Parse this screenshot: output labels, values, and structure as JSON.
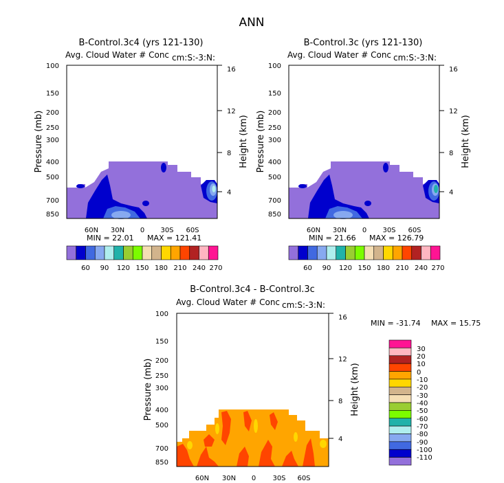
{
  "page_title": "ANN",
  "chart_data": [
    {
      "type": "contour",
      "title": "B-Control.3c4 (yrs 121-130)",
      "subtitle": "Avg. Cloud Water # Conc",
      "units": "cm:S:-3:N:",
      "ylabel": "Pressure (mb)",
      "y2label": "Height (km)",
      "y_ticks": [
        "100",
        "150",
        "200",
        "250",
        "300",
        "400",
        "500",
        "700",
        "850"
      ],
      "y2_ticks": [
        "16",
        "12",
        "8",
        "4"
      ],
      "x_ticks": [
        "60N",
        "30N",
        "0",
        "30S",
        "60S"
      ],
      "min_label": "MIN =  22.01",
      "max_label": "MAX = 121.41",
      "min": 22.01,
      "max": 121.41,
      "colorbar_labels": [
        "60",
        "90",
        "120",
        "150",
        "180",
        "210",
        "240",
        "270"
      ]
    },
    {
      "type": "contour",
      "title": "B-Control.3c (yrs 121-130)",
      "subtitle": "Avg. Cloud Water # Conc",
      "units": "cm:S:-3:N:",
      "ylabel": "Pressure (mb)",
      "y2label": "Height (km)",
      "y_ticks": [
        "100",
        "150",
        "200",
        "250",
        "300",
        "400",
        "500",
        "700",
        "850"
      ],
      "y2_ticks": [
        "16",
        "12",
        "8",
        "4"
      ],
      "x_ticks": [
        "60N",
        "30N",
        "0",
        "30S",
        "60S"
      ],
      "min_label": "MIN =  21.66",
      "max_label": "MAX = 126.79",
      "min": 21.66,
      "max": 126.79,
      "colorbar_labels": [
        "60",
        "90",
        "120",
        "150",
        "180",
        "210",
        "240",
        "270"
      ]
    },
    {
      "type": "contour",
      "title": "B-Control.3c4 - B-Control.3c",
      "subtitle": "Avg. Cloud Water # Conc",
      "units": "cm:S:-3:N:",
      "ylabel": "Pressure (mb)",
      "y2label": "Height (km)",
      "y_ticks": [
        "100",
        "150",
        "200",
        "250",
        "300",
        "400",
        "500",
        "700",
        "850"
      ],
      "y2_ticks": [
        "16",
        "12",
        "8",
        "4"
      ],
      "x_ticks": [
        "60N",
        "30N",
        "0",
        "30S",
        "60S"
      ],
      "min_label": "MIN = -31.74",
      "max_label": "MAX =  15.75",
      "min": -31.74,
      "max": 15.75,
      "colorbar_labels": [
        "30",
        "20",
        "10",
        "0",
        "-10",
        "-20",
        "-30",
        "-40",
        "-50",
        "-60",
        "-70",
        "-80",
        "-90",
        "-100",
        "-110"
      ]
    }
  ],
  "colors": {
    "abs_scale": [
      "#9370db",
      "#0000cd",
      "#4169e1",
      "#87a9f0",
      "#afeeee",
      "#20b2aa",
      "#9acd32",
      "#7cfc00",
      "#f5deb3",
      "#d2b48c",
      "#ffd700",
      "#ffa500",
      "#ff4500",
      "#b22222",
      "#ffb6c1",
      "#ff1493"
    ],
    "diff_scale": [
      "#ff1493",
      "#ffb6c1",
      "#b22222",
      "#ff4500",
      "#ffa500",
      "#ffd700",
      "#d2b48c",
      "#f5deb3",
      "#9acd32",
      "#7cfc00",
      "#20b2aa",
      "#afeeee",
      "#87a9f0",
      "#4169e1",
      "#0000cd",
      "#9370db"
    ],
    "purple": "#9370db",
    "navy": "#0000cd",
    "royal": "#4169e1",
    "light_blue": "#87a9f0",
    "aqua": "#afeeee",
    "teal": "#20b2aa",
    "orange": "#ffa500",
    "red_orange": "#ff4500",
    "gold": "#ffd700"
  }
}
